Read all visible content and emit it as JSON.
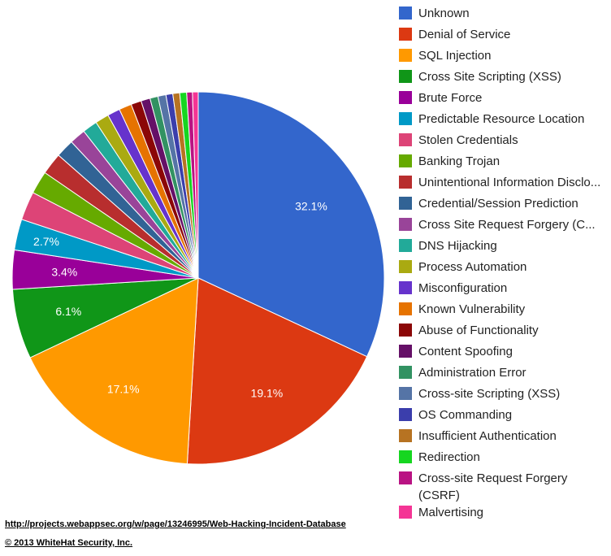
{
  "chart_data": {
    "type": "pie",
    "legend_position": "right",
    "slices": [
      {
        "label": "Unknown",
        "value": 32.1,
        "color": "#3366cc",
        "value_label": "32.1%"
      },
      {
        "label": "Denial of Service",
        "value": 19.1,
        "color": "#dc3912",
        "value_label": "19.1%"
      },
      {
        "label": "SQL Injection",
        "value": 17.1,
        "color": "#ff9900",
        "value_label": "17.1%"
      },
      {
        "label": "Cross Site Scripting (XSS)",
        "value": 6.1,
        "color": "#109618",
        "value_label": "6.1%"
      },
      {
        "label": "Brute Force",
        "value": 3.4,
        "color": "#990099",
        "value_label": "3.4%"
      },
      {
        "label": "Predictable Resource Location",
        "value": 2.7,
        "color": "#0099c6",
        "value_label": "2.7%"
      },
      {
        "label": "Stolen Credentials",
        "value": 2.5,
        "color": "#dd4477",
        "value_label": ""
      },
      {
        "label": "Banking Trojan",
        "value": 2.0,
        "color": "#66aa00",
        "value_label": ""
      },
      {
        "label": "Unintentional Information Disclo...",
        "value": 1.9,
        "color": "#b82e2e",
        "value_label": ""
      },
      {
        "label": "Credential/Session Prediction",
        "value": 1.6,
        "color": "#316395",
        "value_label": ""
      },
      {
        "label": "Cross Site Request Forgery (C...",
        "value": 1.4,
        "color": "#994499",
        "value_label": ""
      },
      {
        "label": "DNS Hijacking",
        "value": 1.3,
        "color": "#22aa99",
        "value_label": ""
      },
      {
        "label": "Process Automation",
        "value": 1.2,
        "color": "#aaaa11",
        "value_label": ""
      },
      {
        "label": "Misconfiguration",
        "value": 1.1,
        "color": "#6633cc",
        "value_label": ""
      },
      {
        "label": "Known Vulnerability",
        "value": 1.1,
        "color": "#e67300",
        "value_label": ""
      },
      {
        "label": "Abuse of Functionality",
        "value": 0.9,
        "color": "#8b0707",
        "value_label": ""
      },
      {
        "label": "Content Spoofing",
        "value": 0.8,
        "color": "#651067",
        "value_label": ""
      },
      {
        "label": "Administration Error",
        "value": 0.7,
        "color": "#329262",
        "value_label": ""
      },
      {
        "label": "Cross-site Scripting (XSS)",
        "value": 0.7,
        "color": "#5574a6",
        "value_label": ""
      },
      {
        "label": "OS Commanding",
        "value": 0.6,
        "color": "#3b3eac",
        "value_label": ""
      },
      {
        "label": "Insufficient Authentication",
        "value": 0.6,
        "color": "#b77322",
        "value_label": ""
      },
      {
        "label": "Redirection",
        "value": 0.6,
        "color": "#16d620",
        "value_label": ""
      },
      {
        "label": "Cross-site Request Forgery (CSRF)",
        "value": 0.5,
        "color": "#b91383",
        "value_label": ""
      },
      {
        "label": "Malvertising",
        "value": 0.5,
        "color": "#f43595",
        "value_label": ""
      }
    ]
  },
  "footer": {
    "source": "http://projects.webappsec.org/w/page/13246995/Web-Hacking-Incident-Database",
    "copyright": "© 2013 WhiteHat Security, Inc. "
  }
}
